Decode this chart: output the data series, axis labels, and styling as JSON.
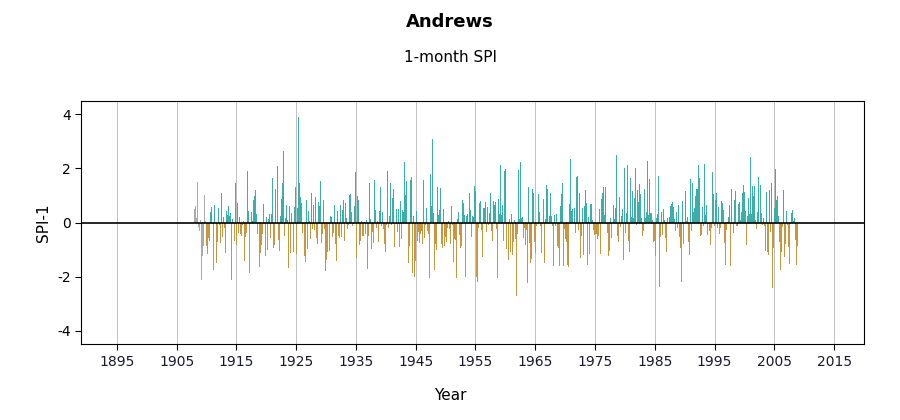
{
  "title": "Andrews",
  "subtitle": "1-month SPI",
  "xlabel": "Year",
  "ylabel": "SPI-1",
  "ylim": [
    -4.5,
    4.5
  ],
  "yticks": [
    -4,
    -2,
    0,
    2,
    4
  ],
  "xlim": [
    1889,
    2020
  ],
  "xticks": [
    1895,
    1905,
    1915,
    1925,
    1935,
    1945,
    1955,
    1965,
    1975,
    1985,
    1995,
    2005,
    2015
  ],
  "decade_lines": [
    1895,
    1905,
    1915,
    1925,
    1935,
    1945,
    1955,
    1965,
    1975,
    1985,
    1995,
    2005,
    2015
  ],
  "color_positive": "#3aafa9",
  "color_negative": "#c8963e",
  "color_gray": "#aaaaaa",
  "data_start_year": 1908,
  "data_end_year": 2009,
  "gray_start_year": 1908,
  "gray_end_year": 1910,
  "random_seed": 42,
  "background_color": "#ffffff",
  "title_fontsize": 13,
  "subtitle_fontsize": 11,
  "axis_label_fontsize": 11,
  "tick_fontsize": 10,
  "tick_color": "#1a1a2e",
  "grid_color": "#c0c0c0",
  "grid_linewidth": 0.7
}
